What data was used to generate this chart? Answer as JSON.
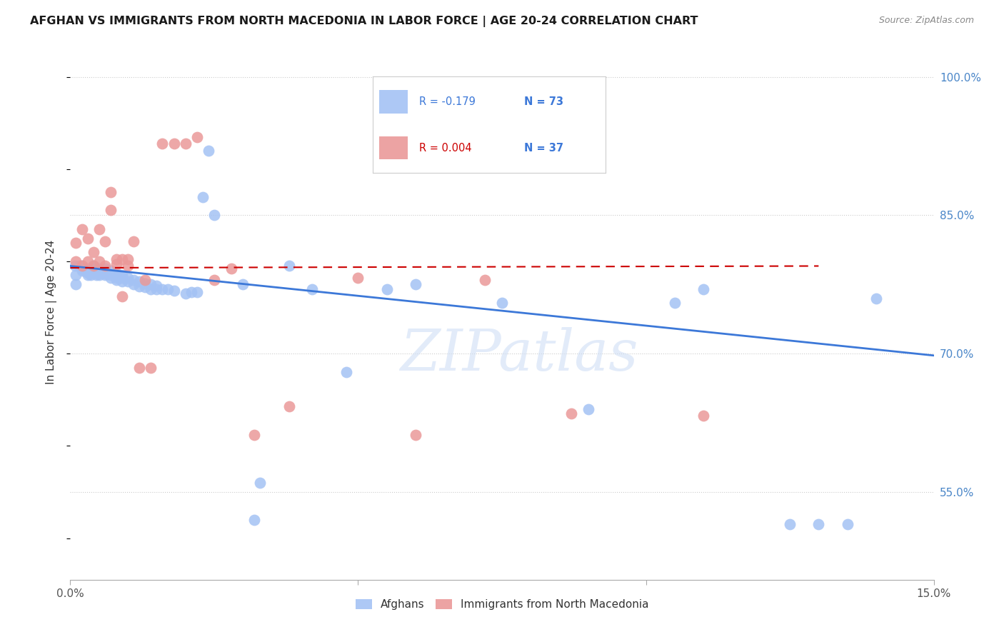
{
  "title": "AFGHAN VS IMMIGRANTS FROM NORTH MACEDONIA IN LABOR FORCE | AGE 20-24 CORRELATION CHART",
  "source": "Source: ZipAtlas.com",
  "ylabel": "In Labor Force | Age 20-24",
  "xlim": [
    0.0,
    0.15
  ],
  "ylim": [
    0.455,
    1.035
  ],
  "yticks_right": [
    0.55,
    0.7,
    0.85,
    1.0
  ],
  "ytick_labels_right": [
    "55.0%",
    "70.0%",
    "85.0%",
    "100.0%"
  ],
  "blue_color": "#a4c2f4",
  "pink_color": "#ea9999",
  "blue_line_color": "#3c78d8",
  "pink_line_color": "#cc0000",
  "legend_blue_r": "R = -0.179",
  "legend_blue_n": "N = 73",
  "legend_pink_r": "R = 0.004",
  "legend_pink_n": "N = 37",
  "legend_r_color_blue": "#3c78d8",
  "legend_n_color_blue": "#3c78d8",
  "legend_r_color_pink": "#cc0000",
  "legend_n_color_pink": "#3c78d8",
  "watermark": "ZIPatlas",
  "legend_label_blue": "Afghans",
  "legend_label_pink": "Immigrants from North Macedonia",
  "background_color": "#ffffff",
  "grid_color": "#cccccc",
  "afghans_x": [
    0.0008,
    0.001,
    0.001,
    0.0015,
    0.002,
    0.002,
    0.002,
    0.0025,
    0.003,
    0.003,
    0.003,
    0.0035,
    0.004,
    0.004,
    0.004,
    0.004,
    0.0045,
    0.005,
    0.005,
    0.005,
    0.005,
    0.006,
    0.006,
    0.006,
    0.006,
    0.007,
    0.007,
    0.007,
    0.007,
    0.008,
    0.008,
    0.008,
    0.008,
    0.009,
    0.009,
    0.009,
    0.01,
    0.01,
    0.011,
    0.011,
    0.012,
    0.012,
    0.013,
    0.013,
    0.014,
    0.014,
    0.015,
    0.015,
    0.016,
    0.017,
    0.018,
    0.02,
    0.021,
    0.022,
    0.023,
    0.024,
    0.025,
    0.03,
    0.032,
    0.033,
    0.038,
    0.042,
    0.048,
    0.055,
    0.06,
    0.075,
    0.09,
    0.105,
    0.11,
    0.125,
    0.13,
    0.135,
    0.14
  ],
  "afghans_y": [
    0.795,
    0.785,
    0.775,
    0.795,
    0.79,
    0.792,
    0.795,
    0.79,
    0.785,
    0.788,
    0.792,
    0.785,
    0.788,
    0.79,
    0.792,
    0.795,
    0.785,
    0.785,
    0.788,
    0.79,
    0.792,
    0.785,
    0.787,
    0.79,
    0.792,
    0.782,
    0.785,
    0.788,
    0.79,
    0.78,
    0.782,
    0.785,
    0.788,
    0.778,
    0.782,
    0.785,
    0.778,
    0.782,
    0.775,
    0.78,
    0.773,
    0.778,
    0.772,
    0.776,
    0.77,
    0.775,
    0.77,
    0.774,
    0.77,
    0.77,
    0.768,
    0.765,
    0.767,
    0.767,
    0.87,
    0.92,
    0.85,
    0.775,
    0.52,
    0.56,
    0.795,
    0.77,
    0.68,
    0.77,
    0.775,
    0.755,
    0.64,
    0.755,
    0.77,
    0.515,
    0.515,
    0.515,
    0.76
  ],
  "macedonia_x": [
    0.001,
    0.001,
    0.002,
    0.002,
    0.003,
    0.003,
    0.004,
    0.004,
    0.005,
    0.005,
    0.006,
    0.006,
    0.007,
    0.007,
    0.008,
    0.008,
    0.009,
    0.009,
    0.01,
    0.01,
    0.011,
    0.012,
    0.013,
    0.014,
    0.016,
    0.018,
    0.02,
    0.022,
    0.025,
    0.028,
    0.032,
    0.038,
    0.05,
    0.06,
    0.072,
    0.087,
    0.11
  ],
  "macedonia_y": [
    0.8,
    0.82,
    0.795,
    0.835,
    0.8,
    0.825,
    0.795,
    0.81,
    0.8,
    0.835,
    0.795,
    0.822,
    0.856,
    0.875,
    0.797,
    0.802,
    0.762,
    0.802,
    0.795,
    0.802,
    0.822,
    0.685,
    0.78,
    0.685,
    0.928,
    0.928,
    0.928,
    0.935,
    0.78,
    0.792,
    0.612,
    0.643,
    0.782,
    0.612,
    0.78,
    0.635,
    0.633
  ],
  "blue_trend_x": [
    0.0,
    0.15
  ],
  "blue_trend_y": [
    0.795,
    0.698
  ],
  "pink_trend_x": [
    0.0,
    0.13
  ],
  "pink_trend_y": [
    0.793,
    0.795
  ]
}
